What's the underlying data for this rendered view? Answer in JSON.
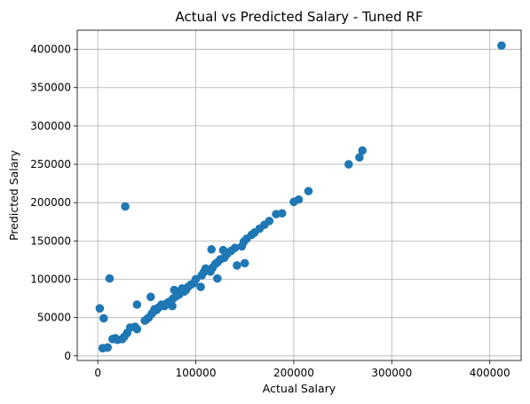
{
  "chart_data": {
    "type": "scatter",
    "title": "Actual vs Predicted Salary - Tuned RF",
    "xlabel": "Actual Salary",
    "ylabel": "Predicted Salary",
    "xlim": [
      -21000,
      432000
    ],
    "ylim": [
      -6000,
      425000
    ],
    "xticks": [
      0,
      100000,
      200000,
      300000,
      400000
    ],
    "xtick_labels": [
      "0",
      "100000",
      "200000",
      "300000",
      "400000"
    ],
    "yticks": [
      0,
      50000,
      100000,
      150000,
      200000,
      250000,
      300000,
      350000,
      400000
    ],
    "ytick_labels": [
      "0",
      "50000",
      "100000",
      "150000",
      "200000",
      "250000",
      "300000",
      "350000",
      "400000"
    ],
    "grid": true,
    "marker_color": "#1f77b4",
    "points": [
      [
        412000,
        405000
      ],
      [
        256000,
        250000
      ],
      [
        267000,
        259000
      ],
      [
        270000,
        268000
      ],
      [
        215000,
        215000
      ],
      [
        205000,
        204000
      ],
      [
        200000,
        201000
      ],
      [
        188000,
        186000
      ],
      [
        182000,
        185000
      ],
      [
        175000,
        176000
      ],
      [
        170000,
        171000
      ],
      [
        165000,
        166000
      ],
      [
        160000,
        161000
      ],
      [
        157000,
        158000
      ],
      [
        152000,
        153000
      ],
      [
        149000,
        149000
      ],
      [
        147000,
        143000
      ],
      [
        150000,
        121000
      ],
      [
        142000,
        118000
      ],
      [
        140000,
        141000
      ],
      [
        136000,
        137000
      ],
      [
        132000,
        133000
      ],
      [
        129000,
        128000
      ],
      [
        125000,
        126000
      ],
      [
        128000,
        138000
      ],
      [
        122000,
        122000
      ],
      [
        120000,
        120000
      ],
      [
        116000,
        139000
      ],
      [
        117000,
        115000
      ],
      [
        115000,
        110000
      ],
      [
        112000,
        112000
      ],
      [
        110000,
        114000
      ],
      [
        108000,
        109000
      ],
      [
        106000,
        105000
      ],
      [
        122000,
        101000
      ],
      [
        105000,
        90000
      ],
      [
        100000,
        100000
      ],
      [
        98000,
        95000
      ],
      [
        95000,
        93000
      ],
      [
        92000,
        90000
      ],
      [
        90000,
        86000
      ],
      [
        88000,
        84000
      ],
      [
        86000,
        88000
      ],
      [
        83000,
        80000
      ],
      [
        80000,
        78000
      ],
      [
        78000,
        86000
      ],
      [
        77000,
        75000
      ],
      [
        75000,
        72000
      ],
      [
        76000,
        65000
      ],
      [
        72000,
        70000
      ],
      [
        70000,
        68000
      ],
      [
        68000,
        65000
      ],
      [
        65000,
        67000
      ],
      [
        62000,
        63000
      ],
      [
        60000,
        60000
      ],
      [
        58000,
        61000
      ],
      [
        55000,
        55000
      ],
      [
        57000,
        58000
      ],
      [
        54000,
        77000
      ],
      [
        52000,
        50000
      ],
      [
        50000,
        48000
      ],
      [
        48000,
        46000
      ],
      [
        40000,
        67000
      ],
      [
        40000,
        35000
      ],
      [
        38000,
        38000
      ],
      [
        33000,
        37000
      ],
      [
        30000,
        30000
      ],
      [
        28000,
        195000
      ],
      [
        27000,
        25000
      ],
      [
        25000,
        22000
      ],
      [
        20000,
        21000
      ],
      [
        18000,
        23000
      ],
      [
        15000,
        22000
      ],
      [
        12000,
        101000
      ],
      [
        10000,
        11000
      ],
      [
        5000,
        10000
      ],
      [
        6000,
        49000
      ],
      [
        2000,
        62000
      ]
    ]
  }
}
